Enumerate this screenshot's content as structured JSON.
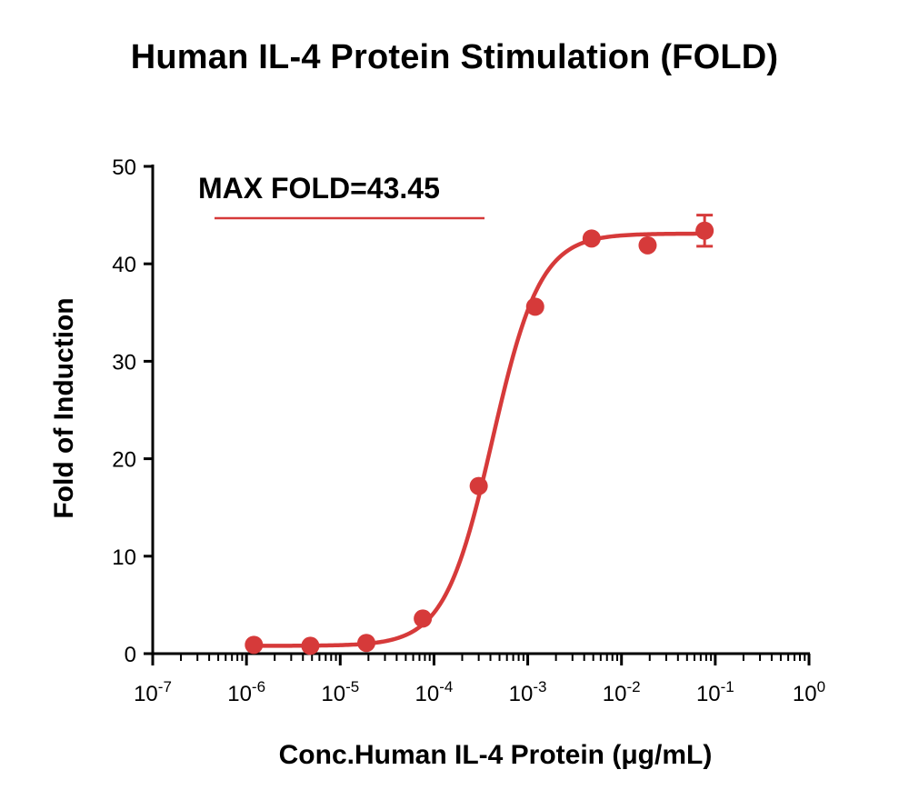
{
  "chart_data": {
    "type": "scatter",
    "title": "Human IL-4 Protein Stimulation (FOLD)",
    "xlabel": "Conc.Human IL-4 Protein (μg/mL)",
    "ylabel": "Fold of Induction",
    "x_scale": "log",
    "xlim": [
      1e-07,
      1
    ],
    "ylim": [
      0,
      50
    ],
    "y_ticks": [
      0,
      10,
      20,
      30,
      40,
      50
    ],
    "x_tick_labels": [
      {
        "base": "10",
        "exp": "-7"
      },
      {
        "base": "10",
        "exp": "-6"
      },
      {
        "base": "10",
        "exp": "-5"
      },
      {
        "base": "10",
        "exp": "-4"
      },
      {
        "base": "10",
        "exp": "-3"
      },
      {
        "base": "10",
        "exp": "-2"
      },
      {
        "base": "10",
        "exp": "-1"
      },
      {
        "base": "10",
        "exp": "0"
      }
    ],
    "grid": false,
    "color": "#d63a3a",
    "annotation": "MAX FOLD=43.45",
    "series": [
      {
        "points": [
          {
            "x": 1.2e-06,
            "y": 0.9
          },
          {
            "x": 4.8e-06,
            "y": 0.8
          },
          {
            "x": 1.9e-05,
            "y": 1.1
          },
          {
            "x": 7.6e-05,
            "y": 3.6
          },
          {
            "x": 0.0003,
            "y": 17.2
          },
          {
            "x": 0.0012,
            "y": 35.6
          },
          {
            "x": 0.0048,
            "y": 42.6
          },
          {
            "x": 0.019,
            "y": 41.9
          },
          {
            "x": 0.077,
            "y": 43.4,
            "err": 1.6
          }
        ],
        "fit": {
          "model": "4PL",
          "bottom": 0.8,
          "top": 43.1,
          "ec50": 0.00042,
          "hill": 1.7
        }
      }
    ]
  }
}
